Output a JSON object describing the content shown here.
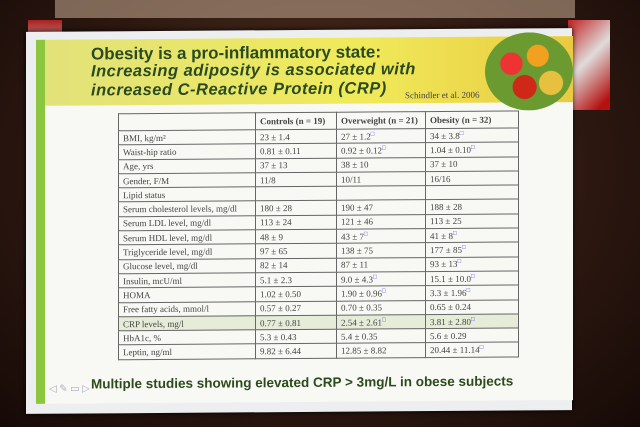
{
  "slide": {
    "title_line1": "Obesity is a pro-inflammatory state:",
    "title_line2": "Increasing adiposity is associated with",
    "title_line3": "increased C-Reactive Protein (CRP)",
    "citation": "Schindler et al. 2006",
    "caption": "Multiple studies showing elevated CRP > 3mg/L in obese subjects",
    "table": {
      "headers": [
        "",
        "Controls (n = 19)",
        "Overweight (n = 21)",
        "Obesity (n = 32)"
      ],
      "rows": [
        [
          "BMI, kg/m²",
          "23 ± 1.4",
          "27 ± 1.2",
          "34 ± 3.8"
        ],
        [
          "Waist-hip ratio",
          "0.81 ± 0.11",
          "0.92 ± 0.12",
          "1.04 ± 0.10"
        ],
        [
          "Age, yrs",
          "37 ± 13",
          "38 ± 10",
          "37 ± 10"
        ],
        [
          "Gender, F/M",
          "11/8",
          "10/11",
          "16/16"
        ],
        [
          "Lipid status",
          "",
          "",
          ""
        ],
        [
          "Serum cholesterol levels, mg/dl",
          "180 ± 28",
          "190 ± 47",
          "188 ± 28"
        ],
        [
          "Serum LDL level, mg/dl",
          "113 ± 24",
          "121 ± 46",
          "113 ± 25"
        ],
        [
          "Serum HDL level, mg/dl",
          "48 ± 9",
          "43 ± 7",
          "41 ± 8"
        ],
        [
          "Triglyceride level, mg/dl",
          "97 ± 65",
          "138 ± 75",
          "177 ± 85"
        ],
        [
          "Glucose level, mg/dl",
          "82 ± 14",
          "87 ± 11",
          "93 ± 13"
        ],
        [
          "Insulin, mcU/ml",
          "5.1 ± 2.3",
          "9.0 ± 4.3",
          "15.1 ± 10.0"
        ],
        [
          "HOMA",
          "1.02 ± 0.50",
          "1.90 ± 0.96",
          "3.3 ± 1.96"
        ],
        [
          "Free fatty acids, mmol/l",
          "0.57 ± 0.27",
          "0.70 ± 0.35",
          "0.65 ± 0.24"
        ],
        [
          "CRP levels, mg/l",
          "0.77 ± 0.81",
          "2.54 ± 2.61",
          "3.81 ± 2.80"
        ],
        [
          "HbA1c, %",
          "5.3 ± 0.43",
          "5.4 ± 0.35",
          "5.6 ± 0.29"
        ],
        [
          "Leptin, ng/ml",
          "9.82 ± 6.44",
          "12.85 ± 8.82",
          "20.44 ± 11.14"
        ]
      ],
      "significant": [
        [
          0,
          2
        ],
        [
          0,
          3
        ],
        [
          1,
          2
        ],
        [
          1,
          3
        ],
        [
          7,
          2
        ],
        [
          7,
          3
        ],
        [
          8,
          3
        ],
        [
          9,
          3
        ],
        [
          10,
          2
        ],
        [
          10,
          3
        ],
        [
          11,
          2
        ],
        [
          11,
          3
        ],
        [
          13,
          2
        ],
        [
          13,
          3
        ],
        [
          15,
          3
        ]
      ],
      "highlight_row": 13
    }
  },
  "colors": {
    "accent_green": "#8cc63e",
    "title_bar": "#f0ea5a",
    "title_text": "#2a4a20"
  }
}
